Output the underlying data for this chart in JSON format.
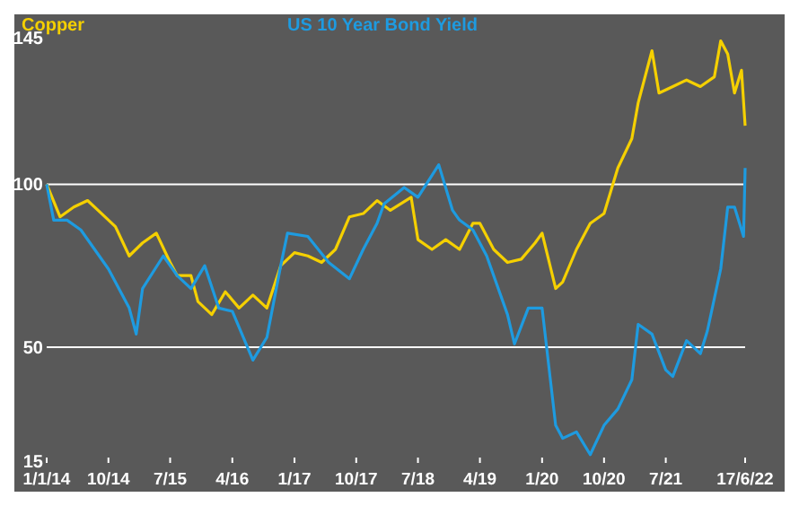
{
  "chart_data": {
    "type": "line",
    "ylim": [
      15,
      145
    ],
    "yticks": [
      15,
      50,
      100,
      145
    ],
    "xlim": [
      "2014-01-01",
      "2022-06-17"
    ],
    "xticks": [
      {
        "value": "2014-01-01",
        "label": "1/1/14"
      },
      {
        "value": "2014-10-01",
        "label": "10/14"
      },
      {
        "value": "2015-07-01",
        "label": "7/15"
      },
      {
        "value": "2016-04-01",
        "label": "4/16"
      },
      {
        "value": "2017-01-01",
        "label": "1/17"
      },
      {
        "value": "2017-10-01",
        "label": "10/17"
      },
      {
        "value": "2018-07-01",
        "label": "7/18"
      },
      {
        "value": "2019-04-01",
        "label": "4/19"
      },
      {
        "value": "2020-01-01",
        "label": "1/20"
      },
      {
        "value": "2020-10-01",
        "label": "10/20"
      },
      {
        "value": "2021-07-01",
        "label": "7/21"
      },
      {
        "value": "2022-06-17",
        "label": "17/6/22"
      }
    ],
    "legend": "top",
    "line_style": "solid",
    "ref_lines": [
      {
        "axis": "y",
        "value": 100,
        "color": "#ffffff"
      },
      {
        "axis": "y",
        "value": 50,
        "color": "#ffffff"
      }
    ],
    "series": [
      {
        "name": "Copper",
        "color": "#f5d000",
        "x": [
          "2014-01-01",
          "2014-03-01",
          "2014-05-01",
          "2014-07-01",
          "2014-09-01",
          "2014-11-01",
          "2015-01-01",
          "2015-03-01",
          "2015-05-01",
          "2015-07-01",
          "2015-08-01",
          "2015-10-01",
          "2015-11-01",
          "2016-01-01",
          "2016-03-01",
          "2016-05-01",
          "2016-07-01",
          "2016-09-01",
          "2016-11-01",
          "2017-01-01",
          "2017-03-01",
          "2017-05-01",
          "2017-07-01",
          "2017-09-01",
          "2017-11-01",
          "2018-01-01",
          "2018-03-01",
          "2018-06-01",
          "2018-07-01",
          "2018-09-01",
          "2018-11-01",
          "2019-01-01",
          "2019-03-01",
          "2019-04-01",
          "2019-06-01",
          "2019-08-01",
          "2019-10-01",
          "2019-12-01",
          "2020-01-01",
          "2020-03-01",
          "2020-04-01",
          "2020-06-01",
          "2020-08-01",
          "2020-10-01",
          "2020-12-01",
          "2021-02-01",
          "2021-03-01",
          "2021-05-01",
          "2021-06-01",
          "2021-08-01",
          "2021-10-01",
          "2021-12-01",
          "2022-02-01",
          "2022-03-01",
          "2022-04-01",
          "2022-05-01",
          "2022-06-01",
          "2022-06-17"
        ],
        "values": [
          100,
          90,
          93,
          95,
          91,
          87,
          78,
          82,
          85,
          76,
          72,
          72,
          64,
          60,
          67,
          62,
          66,
          62,
          75,
          79,
          78,
          76,
          80,
          90,
          91,
          95,
          92,
          96,
          83,
          80,
          83,
          80,
          88,
          88,
          80,
          76,
          77,
          82,
          85,
          68,
          70,
          80,
          88,
          91,
          105,
          114,
          125,
          141,
          128,
          130,
          132,
          130,
          133,
          144,
          140,
          128,
          135,
          118
        ]
      },
      {
        "name": "US 10 Year Bond Yield",
        "color": "#1e9be0",
        "x": [
          "2014-01-01",
          "2014-02-01",
          "2014-04-01",
          "2014-06-01",
          "2014-08-01",
          "2014-10-01",
          "2015-01-01",
          "2015-02-01",
          "2015-03-01",
          "2015-06-01",
          "2015-08-01",
          "2015-10-01",
          "2015-12-01",
          "2016-02-01",
          "2016-04-01",
          "2016-07-01",
          "2016-09-01",
          "2016-11-01",
          "2016-12-01",
          "2017-03-01",
          "2017-06-01",
          "2017-09-01",
          "2017-11-01",
          "2018-01-01",
          "2018-02-01",
          "2018-05-01",
          "2018-07-01",
          "2018-10-01",
          "2018-12-01",
          "2019-01-01",
          "2019-03-01",
          "2019-05-01",
          "2019-08-01",
          "2019-09-01",
          "2019-11-01",
          "2020-01-01",
          "2020-03-01",
          "2020-04-01",
          "2020-06-01",
          "2020-08-01",
          "2020-10-01",
          "2020-12-01",
          "2021-02-01",
          "2021-03-01",
          "2021-05-01",
          "2021-07-01",
          "2021-08-01",
          "2021-10-01",
          "2021-12-01",
          "2022-01-01",
          "2022-03-01",
          "2022-04-01",
          "2022-05-01",
          "2022-06-10",
          "2022-06-17"
        ],
        "values": [
          100,
          89,
          89,
          86,
          80,
          74,
          62,
          54,
          68,
          78,
          72,
          68,
          75,
          62,
          61,
          46,
          53,
          75,
          85,
          84,
          76,
          71,
          80,
          88,
          94,
          99,
          96,
          106,
          92,
          89,
          86,
          78,
          60,
          51,
          62,
          62,
          26,
          22,
          24,
          17,
          26,
          31,
          40,
          57,
          54,
          43,
          41,
          52,
          48,
          55,
          74,
          93,
          93,
          84,
          105
        ]
      }
    ]
  }
}
